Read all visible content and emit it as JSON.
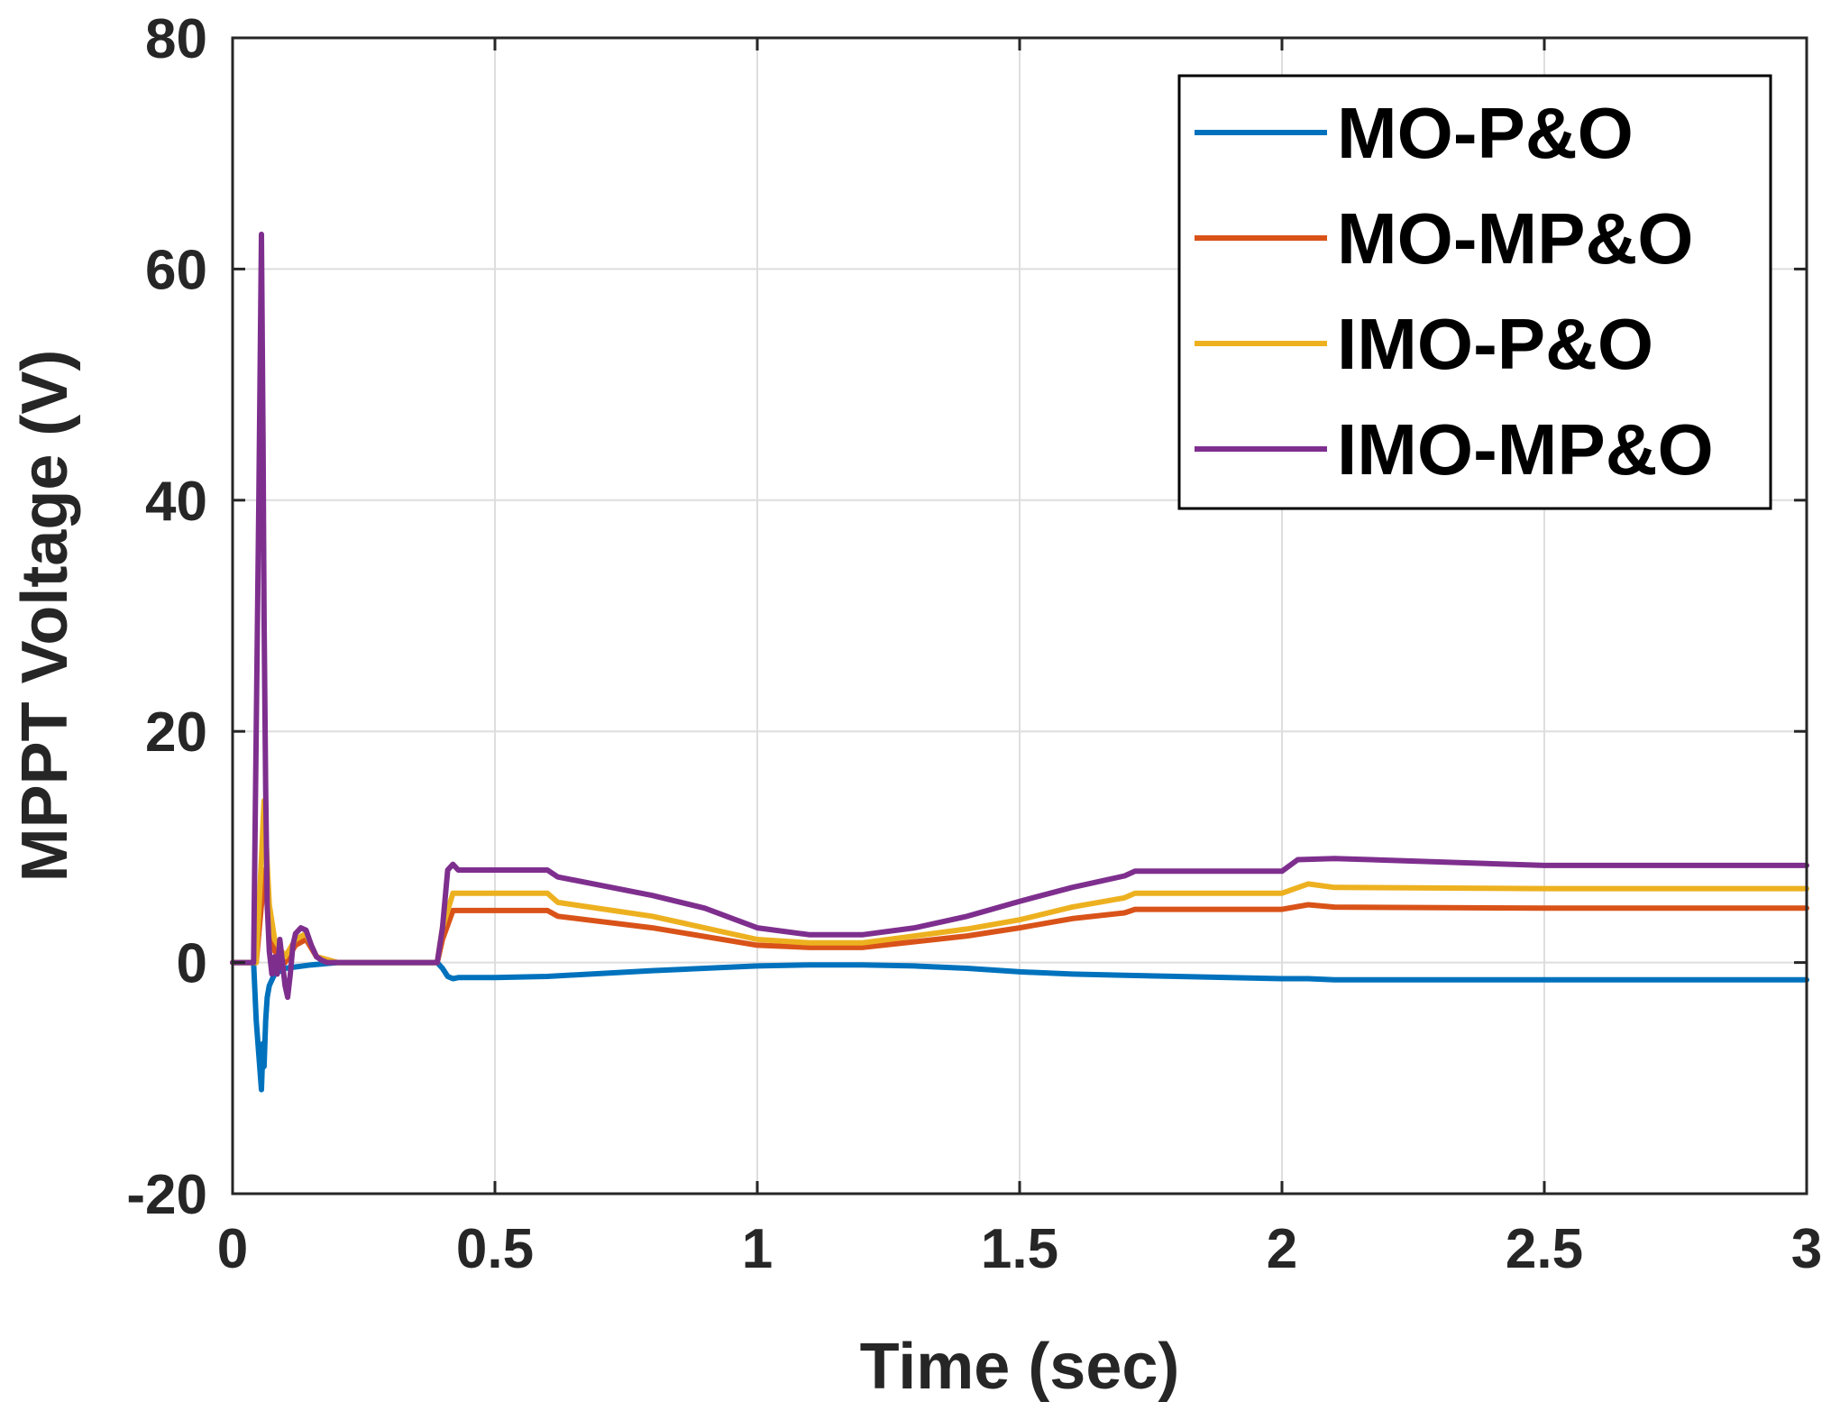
{
  "chart_data": {
    "type": "line",
    "title": "",
    "xlabel": "Time (sec)",
    "ylabel": "MPPT Voltage (V)",
    "xlim": [
      0,
      3
    ],
    "ylim": [
      -20,
      80
    ],
    "grid": true,
    "legend_location": "top-right",
    "x_ticks": [
      {
        "value": 0,
        "label": "0"
      },
      {
        "value": 0.5,
        "label": "0.5"
      },
      {
        "value": 1,
        "label": "1"
      },
      {
        "value": 1.5,
        "label": "1.5"
      },
      {
        "value": 2,
        "label": "2"
      },
      {
        "value": 2.5,
        "label": "2.5"
      },
      {
        "value": 3,
        "label": "3"
      }
    ],
    "y_ticks": [
      {
        "value": -20,
        "label": "-20"
      },
      {
        "value": 0,
        "label": "0"
      },
      {
        "value": 20,
        "label": "20"
      },
      {
        "value": 40,
        "label": "40"
      },
      {
        "value": 60,
        "label": "60"
      },
      {
        "value": 80,
        "label": "80"
      }
    ],
    "series": [
      {
        "name": "MO-P&O",
        "color": "#0072BD",
        "x": [
          0,
          0.04,
          0.045,
          0.05,
          0.055,
          0.058,
          0.06,
          0.063,
          0.066,
          0.07,
          0.08,
          0.1,
          0.15,
          0.2,
          0.3,
          0.39,
          0.4,
          0.41,
          0.42,
          0.43,
          0.5,
          0.6,
          0.8,
          1.0,
          1.1,
          1.2,
          1.3,
          1.4,
          1.5,
          1.6,
          1.7,
          1.8,
          1.9,
          2.0,
          2.05,
          2.1,
          2.5,
          3.0
        ],
        "y": [
          0,
          0,
          -5,
          -8,
          -11,
          -7,
          -9,
          -5,
          -3,
          -2,
          -1,
          -0.5,
          -0.2,
          0,
          0,
          0,
          -0.5,
          -1.2,
          -1.4,
          -1.3,
          -1.3,
          -1.2,
          -0.7,
          -0.3,
          -0.2,
          -0.2,
          -0.3,
          -0.5,
          -0.8,
          -1.0,
          -1.1,
          -1.2,
          -1.3,
          -1.4,
          -1.4,
          -1.5,
          -1.5,
          -1.5
        ]
      },
      {
        "name": "MO-MP&O",
        "color": "#D95319",
        "x": [
          0,
          0.045,
          0.055,
          0.06,
          0.07,
          0.08,
          0.1,
          0.12,
          0.14,
          0.16,
          0.2,
          0.3,
          0.39,
          0.4,
          0.42,
          0.43,
          0.5,
          0.6,
          0.62,
          0.8,
          1.0,
          1.1,
          1.2,
          1.3,
          1.4,
          1.5,
          1.6,
          1.7,
          1.72,
          1.8,
          1.9,
          2.0,
          2.05,
          2.1,
          2.5,
          3.0
        ],
        "y": [
          0,
          0,
          5,
          8,
          3,
          1,
          0,
          1.5,
          2,
          0.5,
          0,
          0,
          0,
          2,
          4.5,
          4.5,
          4.5,
          4.5,
          4.0,
          3.0,
          1.5,
          1.3,
          1.3,
          1.8,
          2.3,
          3.0,
          3.8,
          4.3,
          4.6,
          4.6,
          4.6,
          4.6,
          5.0,
          4.8,
          4.7,
          4.7
        ]
      },
      {
        "name": "IMO-P&O",
        "color": "#EDB120",
        "x": [
          0,
          0.045,
          0.055,
          0.06,
          0.07,
          0.08,
          0.1,
          0.12,
          0.14,
          0.16,
          0.2,
          0.3,
          0.39,
          0.4,
          0.42,
          0.43,
          0.5,
          0.6,
          0.62,
          0.8,
          1.0,
          1.1,
          1.2,
          1.3,
          1.4,
          1.5,
          1.6,
          1.7,
          1.72,
          1.8,
          1.9,
          2.0,
          2.05,
          2.1,
          2.5,
          3.0
        ],
        "y": [
          0,
          0,
          9,
          14,
          5,
          2,
          0.5,
          2,
          2.5,
          0.5,
          0,
          0,
          0,
          3,
          6,
          6,
          6,
          6,
          5.2,
          4.0,
          2.0,
          1.7,
          1.7,
          2.3,
          2.9,
          3.7,
          4.8,
          5.6,
          6.0,
          6.0,
          6.0,
          6.0,
          6.8,
          6.5,
          6.4,
          6.4
        ]
      },
      {
        "name": "IMO-MP&O",
        "color": "#7E2F8E",
        "x": [
          0,
          0.04,
          0.045,
          0.05,
          0.055,
          0.058,
          0.06,
          0.063,
          0.066,
          0.07,
          0.075,
          0.08,
          0.085,
          0.09,
          0.095,
          0.1,
          0.105,
          0.11,
          0.115,
          0.12,
          0.13,
          0.14,
          0.15,
          0.16,
          0.17,
          0.18,
          0.2,
          0.3,
          0.39,
          0.4,
          0.41,
          0.42,
          0.43,
          0.5,
          0.6,
          0.62,
          0.8,
          0.9,
          1.0,
          1.1,
          1.2,
          1.3,
          1.4,
          1.5,
          1.6,
          1.7,
          1.72,
          1.8,
          1.9,
          2.0,
          2.03,
          2.1,
          2.5,
          3.0
        ],
        "y": [
          0,
          0,
          20,
          40,
          63,
          45,
          30,
          15,
          5,
          1,
          -1,
          0.5,
          -1,
          2,
          0,
          -2,
          -3,
          -1,
          1.5,
          2.5,
          3,
          2.8,
          1.5,
          0.5,
          0.2,
          0,
          0,
          0,
          0,
          3,
          8,
          8.5,
          8,
          8,
          8,
          7.4,
          5.8,
          4.7,
          3.0,
          2.4,
          2.4,
          3.0,
          4.0,
          5.3,
          6.5,
          7.5,
          7.9,
          7.9,
          7.9,
          7.9,
          8.9,
          9.0,
          8.4,
          8.4
        ]
      }
    ]
  }
}
